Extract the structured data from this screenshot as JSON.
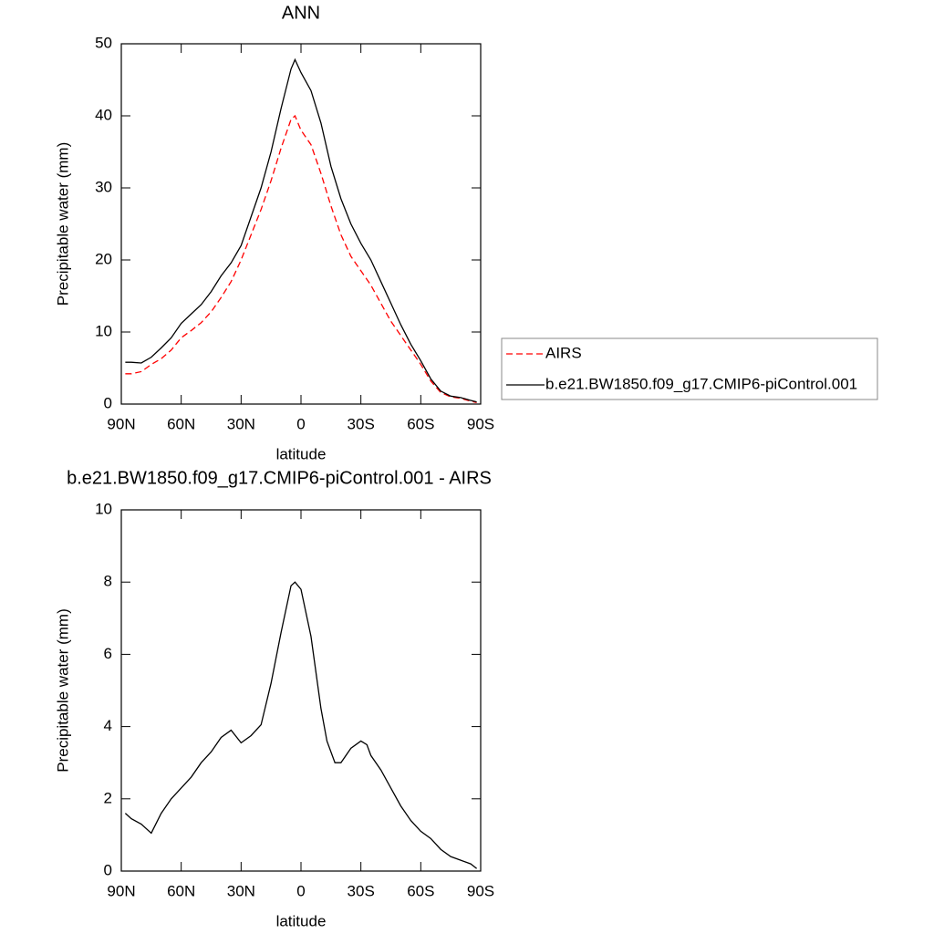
{
  "chart_data": [
    {
      "type": "line",
      "title": "ANN",
      "xlabel": "latitude",
      "ylabel": "Precipitable water (mm)",
      "xlim": [
        90,
        -90
      ],
      "xticks": [
        {
          "value": 90,
          "label": "90N"
        },
        {
          "value": 60,
          "label": "60N"
        },
        {
          "value": 30,
          "label": "30N"
        },
        0,
        {
          "value": -30,
          "label": "30S"
        },
        {
          "value": -60,
          "label": "60S"
        },
        {
          "value": -90,
          "label": "90S"
        }
      ],
      "ylim": [
        0,
        50
      ],
      "yticks": [
        0,
        10,
        20,
        30,
        40,
        50
      ],
      "legend": "outside-right",
      "x": [
        88,
        85,
        80,
        75,
        70,
        65,
        60,
        55,
        50,
        45,
        40,
        35,
        30,
        25,
        20,
        15,
        10,
        5,
        3,
        0,
        -5,
        -10,
        -15,
        -20,
        -25,
        -30,
        -35,
        -40,
        -45,
        -50,
        -55,
        -60,
        -65,
        -70,
        -75,
        -80,
        -85,
        -88
      ],
      "series": [
        {
          "name": "AIRS",
          "color": "#ff0000",
          "dashed": true,
          "values": [
            4.2,
            4.2,
            4.5,
            5.5,
            6.3,
            7.5,
            9.2,
            10.2,
            11.3,
            12.8,
            14.8,
            17,
            20,
            23.5,
            27,
            31,
            35.5,
            39.5,
            40,
            38,
            36,
            32,
            27.5,
            23.5,
            20.5,
            18.5,
            16.5,
            14,
            11.5,
            9.5,
            7.5,
            5.5,
            3.2,
            1.6,
            1,
            0.8,
            0.4,
            0.2
          ]
        },
        {
          "name": "b.e21.BW1850.f09_g17.CMIP6-piControl.001",
          "color": "#000000",
          "dashed": false,
          "values": [
            5.8,
            5.8,
            5.7,
            6.5,
            7.8,
            9.2,
            11.2,
            12.5,
            13.8,
            15.6,
            17.8,
            19.6,
            22,
            26,
            30,
            35,
            41,
            46.5,
            47.8,
            46,
            43.5,
            39,
            33,
            28.5,
            25,
            22.3,
            20,
            17,
            14,
            11,
            8.3,
            6,
            3.5,
            1.8,
            1.1,
            0.9,
            0.5,
            0.3
          ]
        }
      ]
    },
    {
      "type": "line",
      "title": "b.e21.BW1850.f09_g17.CMIP6-piControl.001 - AIRS",
      "xlabel": "latitude",
      "ylabel": "Precipitable water (mm)",
      "xlim": [
        90,
        -90
      ],
      "xticks": [
        {
          "value": 90,
          "label": "90N"
        },
        {
          "value": 60,
          "label": "60N"
        },
        {
          "value": 30,
          "label": "30N"
        },
        0,
        {
          "value": -30,
          "label": "30S"
        },
        {
          "value": -60,
          "label": "60S"
        },
        {
          "value": -90,
          "label": "90S"
        }
      ],
      "ylim": [
        0,
        10
      ],
      "yticks": [
        0,
        2,
        4,
        6,
        8,
        10
      ],
      "x": [
        88,
        85,
        80,
        75,
        70,
        65,
        60,
        55,
        50,
        45,
        40,
        35,
        30,
        25,
        20,
        15,
        10,
        5,
        3,
        0,
        -5,
        -10,
        -13,
        -17,
        -20,
        -25,
        -30,
        -33,
        -35,
        -40,
        -45,
        -50,
        -55,
        -60,
        -65,
        -70,
        -75,
        -80,
        -85,
        -88
      ],
      "series": [
        {
          "color": "#000000",
          "dashed": false,
          "values": [
            1.6,
            1.45,
            1.3,
            1.05,
            1.6,
            2.0,
            2.3,
            2.6,
            3.0,
            3.3,
            3.7,
            3.9,
            3.55,
            3.75,
            4.05,
            5.2,
            6.6,
            7.9,
            8.0,
            7.8,
            6.5,
            4.5,
            3.6,
            3.0,
            3.0,
            3.4,
            3.6,
            3.5,
            3.2,
            2.8,
            2.3,
            1.8,
            1.4,
            1.1,
            0.9,
            0.6,
            0.4,
            0.3,
            0.2,
            0.07
          ]
        }
      ]
    }
  ]
}
